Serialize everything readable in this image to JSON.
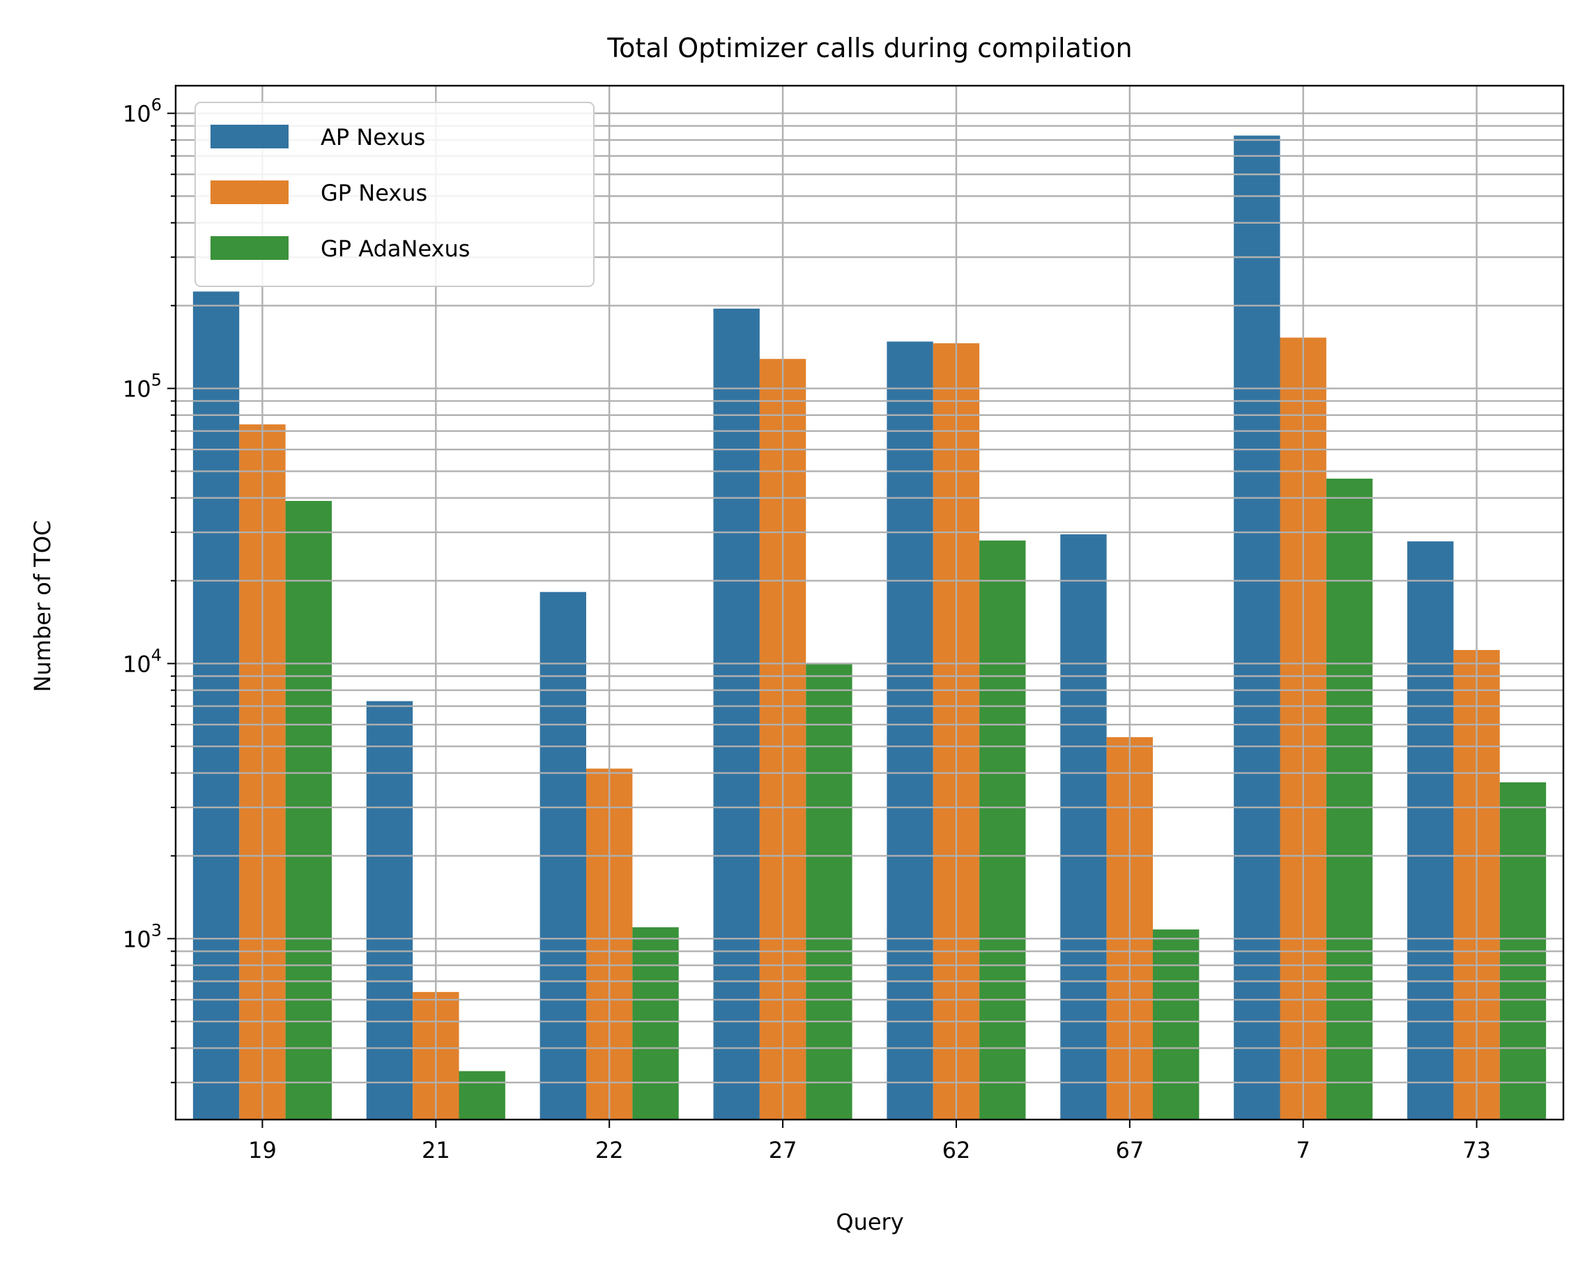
{
  "chart_data": {
    "type": "bar",
    "title": "Total Optimizer calls during compilation",
    "xlabel": "Query",
    "ylabel": "Number of TOC",
    "yscale": "log",
    "ylim": [
      220,
      1260000
    ],
    "grid": true,
    "legend_position": "top-left",
    "categories": [
      "19",
      "21",
      "22",
      "27",
      "62",
      "67",
      "7",
      "73"
    ],
    "y_ticks": [
      {
        "base": "10",
        "exp": "3",
        "value": 1000
      },
      {
        "base": "10",
        "exp": "4",
        "value": 10000
      },
      {
        "base": "10",
        "exp": "5",
        "value": 100000
      },
      {
        "base": "10",
        "exp": "6",
        "value": 1000000
      }
    ],
    "series": [
      {
        "name": "AP Nexus",
        "color": "#3274a1",
        "values": [
          225000,
          7300,
          18200,
          195000,
          148000,
          29500,
          830000,
          27800
        ]
      },
      {
        "name": "GP Nexus",
        "color": "#e1812c",
        "values": [
          74000,
          640,
          4150,
          128000,
          146000,
          5400,
          153000,
          11200
        ]
      },
      {
        "name": "GP AdaNexus",
        "color": "#3a923a",
        "values": [
          39000,
          330,
          1100,
          10000,
          28000,
          1080,
          47000,
          3700
        ]
      }
    ]
  }
}
